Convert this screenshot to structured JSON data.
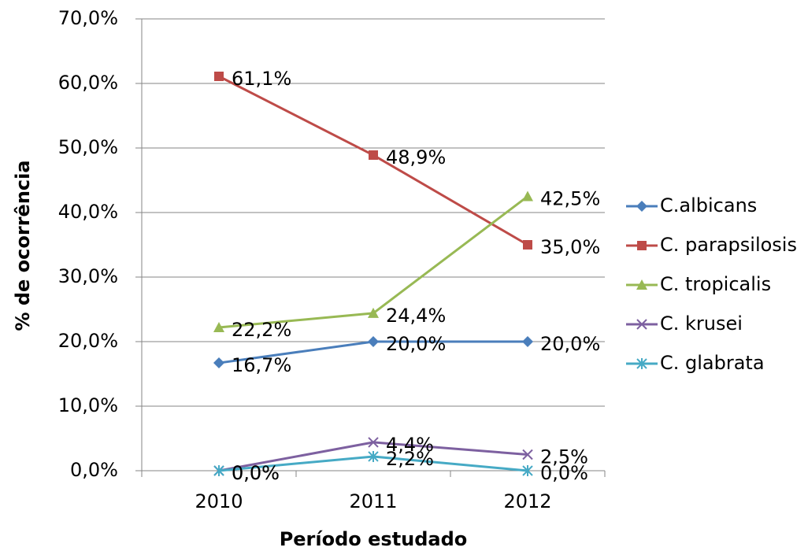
{
  "chart_data": {
    "type": "line",
    "x_label": "Período estudado",
    "y_label": "% de ocorrência",
    "categories": [
      "2010",
      "2011",
      "2012"
    ],
    "ylim": [
      0,
      70
    ],
    "yticks": [
      {
        "value": 0,
        "label": "0,0%"
      },
      {
        "value": 10,
        "label": "10,0%"
      },
      {
        "value": 20,
        "label": "20,0%"
      },
      {
        "value": 30,
        "label": "30,0%"
      },
      {
        "value": 40,
        "label": "40,0%"
      },
      {
        "value": 50,
        "label": "50,0%"
      },
      {
        "value": 60,
        "label": "60,0%"
      },
      {
        "value": 70,
        "label": "70,0%"
      }
    ],
    "grid": true,
    "legend": "right",
    "series": [
      {
        "name": "C.albicans",
        "color": "#4a7ebb",
        "marker": "diamond",
        "values": [
          16.7,
          20.0,
          20.0
        ],
        "value_labels": [
          "16,7%",
          "20,0%",
          "20,0%"
        ]
      },
      {
        "name": "C. parapsilosis",
        "color": "#be4b48",
        "marker": "square",
        "values": [
          61.1,
          48.9,
          35.0
        ],
        "value_labels": [
          "61,1%",
          "48,9%",
          "35,0%"
        ]
      },
      {
        "name": "C. tropicalis",
        "color": "#98b954",
        "marker": "triangle",
        "values": [
          22.2,
          24.4,
          42.5
        ],
        "value_labels": [
          "22,2%",
          "24,4%",
          "42,5%"
        ]
      },
      {
        "name": "C. krusei",
        "color": "#7d60a0",
        "marker": "x",
        "values": [
          0.0,
          4.4,
          2.5
        ],
        "value_labels": [
          "0,0%",
          "4,4%",
          "2,5%"
        ]
      },
      {
        "name": "C. glabrata",
        "color": "#46aac5",
        "marker": "star",
        "values": [
          0.0,
          2.2,
          0.0
        ],
        "value_labels": [
          "0,0%",
          "2,2%",
          "0,0%"
        ]
      }
    ]
  }
}
